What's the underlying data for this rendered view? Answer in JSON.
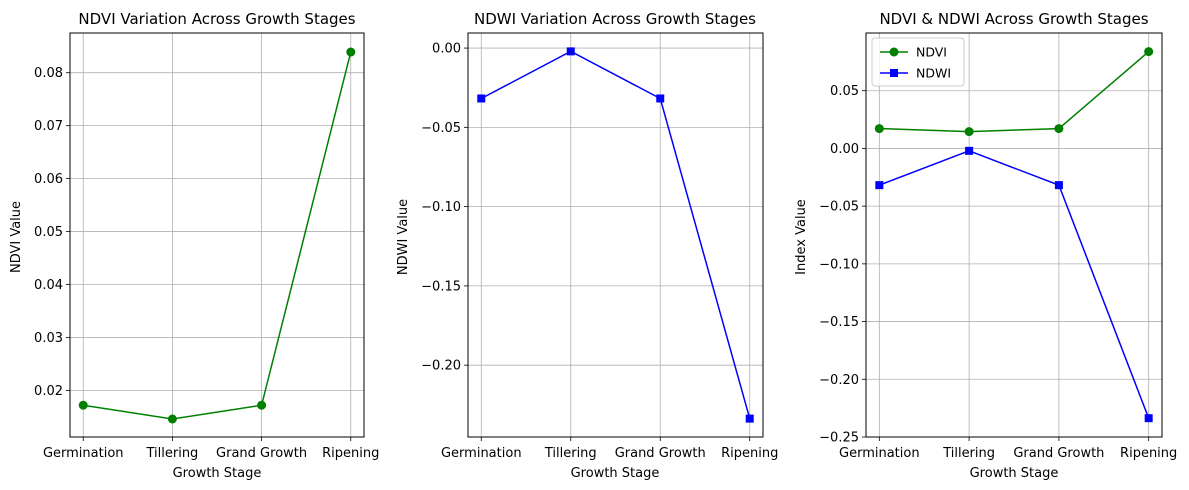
{
  "chart_data": [
    {
      "type": "line",
      "title": "NDVI Variation Across Growth Stages",
      "xlabel": "Growth Stage",
      "ylabel": "NDVI Value",
      "categories": [
        "Germination",
        "Tillering",
        "Grand Growth",
        "Ripening"
      ],
      "series": [
        {
          "values": [
            0.0172,
            0.0146,
            0.0172,
            0.0839
          ],
          "color": "#008000",
          "marker": "circle"
        }
      ],
      "ylim": [
        0.0112,
        0.0875
      ],
      "yticks": [
        0.02,
        0.03,
        0.04,
        0.05,
        0.06,
        0.07,
        0.08
      ],
      "ytick_labels": [
        "0.02",
        "0.03",
        "0.04",
        "0.05",
        "0.06",
        "0.07",
        "0.08"
      ],
      "grid": true,
      "legend": "none"
    },
    {
      "type": "line",
      "title": "NDWI Variation Across Growth Stages",
      "xlabel": "Growth Stage",
      "ylabel": "NDWI Value",
      "categories": [
        "Germination",
        "Tillering",
        "Grand Growth",
        "Ripening"
      ],
      "series": [
        {
          "values": [
            -0.0318,
            -0.0021,
            -0.0318,
            -0.2337
          ],
          "color": "#0000ff",
          "marker": "square"
        }
      ],
      "ylim": [
        -0.2453,
        0.0095
      ],
      "yticks": [
        0.0,
        -0.05,
        -0.1,
        -0.15,
        -0.2
      ],
      "ytick_labels": [
        "0.00",
        "−0.05",
        "−0.10",
        "−0.15",
        "−0.20"
      ],
      "grid": true,
      "legend": "none"
    },
    {
      "type": "line",
      "title": "NDVI & NDWI Across Growth Stages",
      "xlabel": "Growth Stage",
      "ylabel": "Index Value",
      "categories": [
        "Germination",
        "Tillering",
        "Grand Growth",
        "Ripening"
      ],
      "series": [
        {
          "name": "NDVI",
          "values": [
            0.0172,
            0.0146,
            0.0172,
            0.0839
          ],
          "color": "#008000",
          "marker": "circle"
        },
        {
          "name": "NDWI",
          "values": [
            -0.0318,
            -0.0021,
            -0.0318,
            -0.2337
          ],
          "color": "#0000ff",
          "marker": "square"
        }
      ],
      "ylim": [
        -0.25,
        0.1
      ],
      "yticks": [
        0.05,
        0.0,
        -0.05,
        -0.1,
        -0.15,
        -0.2,
        -0.25
      ],
      "ytick_labels": [
        "0.05",
        "0.00",
        "−0.05",
        "−0.10",
        "−0.15",
        "−0.20",
        "−0.25"
      ],
      "grid": true,
      "legend": "top-left"
    }
  ]
}
